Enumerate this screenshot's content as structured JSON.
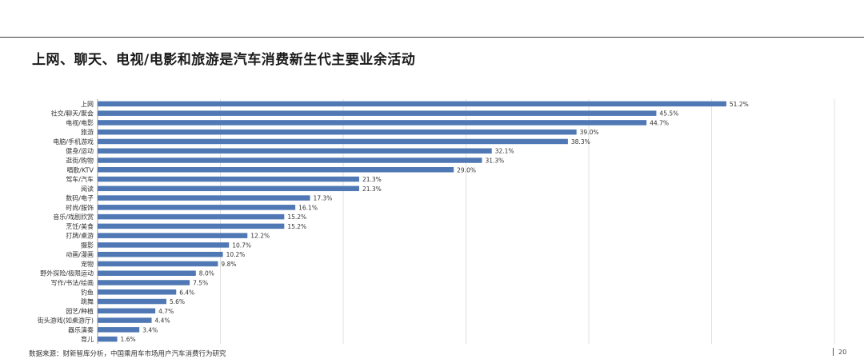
{
  "slide": {
    "title": "上网、聊天、电视/电影和旅游是汽车消费新生代主要业余活动",
    "source": "数据来源：财新智库分析，中国乘用车市场用户汽车消费行为研究",
    "page_number": "20"
  },
  "colors": {
    "bar": "#4f78b4",
    "grid": "#d9d9d9",
    "axis": "#888888"
  },
  "chart_data": {
    "type": "bar",
    "orientation": "horizontal",
    "title": "",
    "xlabel": "",
    "ylabel": "",
    "xlim": [
      0,
      60
    ],
    "grid": true,
    "categories": [
      "上网",
      "社交/聊天/聚会",
      "电视/电影",
      "旅游",
      "电脑/手机游戏",
      "健身/运动",
      "逛街/购物",
      "唱歌/KTV",
      "驾车/汽车",
      "阅读",
      "数码/电子",
      "时尚/服饰",
      "音乐/戏剧欣赏",
      "烹饪/美食",
      "打牌/桌游",
      "摄影",
      "动画/漫画",
      "宠物",
      "野外探险/极限运动",
      "写作/书法/绘画",
      "钓鱼",
      "跳舞",
      "园艺/种植",
      "街头游戏(如桌游厅)",
      "器乐演奏",
      "育儿"
    ],
    "values": [
      51.2,
      45.5,
      44.7,
      39.0,
      38.3,
      32.1,
      31.3,
      29.0,
      21.3,
      21.3,
      17.3,
      16.1,
      15.2,
      15.2,
      12.2,
      10.7,
      10.2,
      9.8,
      8.0,
      7.5,
      6.4,
      5.6,
      4.7,
      4.4,
      3.4,
      1.6
    ],
    "value_labels": [
      "51.2%",
      "45.5%",
      "44.7%",
      "39.0%",
      "38.3%",
      "32.1%",
      "31.3%",
      "29.0%",
      "21.3%",
      "21.3%",
      "17.3%",
      "16.1%",
      "15.2%",
      "15.2%",
      "12.2%",
      "10.7%",
      "10.2%",
      "9.8%",
      "8.0%",
      "7.5%",
      "6.4%",
      "5.6%",
      "4.7%",
      "4.4%",
      "3.4%",
      "1.6%"
    ]
  }
}
